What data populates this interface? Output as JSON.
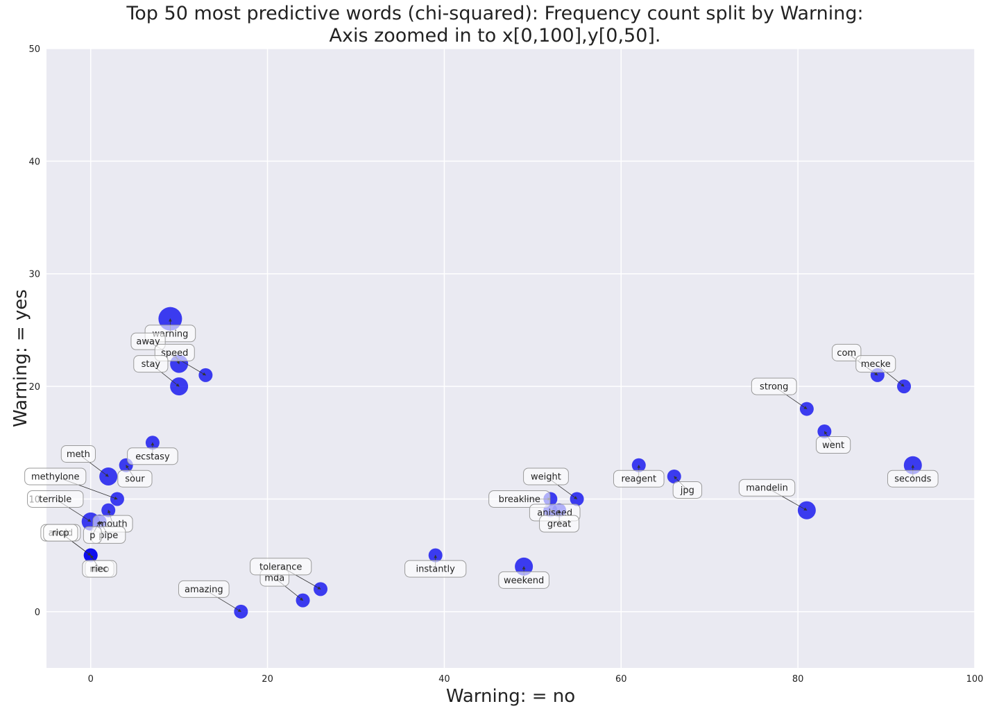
{
  "chart_data": {
    "type": "scatter",
    "title_line1": "Top 50 most predictive words (chi-squared): Frequency count split by Warning:",
    "title_line2": "Axis zoomed in to x[0,100],y[0,50].",
    "xlabel": "Warning: = no",
    "ylabel": "Warning: = yes",
    "xlim": [
      -5,
      100
    ],
    "ylim": [
      -5,
      50
    ],
    "xticks": [
      0,
      20,
      40,
      60,
      80,
      100
    ],
    "yticks": [
      0,
      10,
      20,
      30,
      40,
      50
    ],
    "grid": true,
    "point_color": "#0000ee",
    "background_color": "#eaeaf2",
    "points": [
      {
        "word": "warning",
        "x": 9,
        "y": 26,
        "size": 3
      },
      {
        "word": "away",
        "x": 13,
        "y": 21,
        "size": 1
      },
      {
        "word": "speed",
        "x": 10,
        "y": 22,
        "size": 2
      },
      {
        "word": "stay",
        "x": 10,
        "y": 20,
        "size": 2
      },
      {
        "word": "ecstasy",
        "x": 7,
        "y": 15,
        "size": 1
      },
      {
        "word": "meth",
        "x": 2,
        "y": 12,
        "size": 2
      },
      {
        "word": "sour",
        "x": 4,
        "y": 13,
        "size": 1
      },
      {
        "word": "methylone",
        "x": 3,
        "y": 10,
        "size": 1
      },
      {
        "word": "terrible",
        "x": 0,
        "y": 8,
        "size": 2
      },
      {
        "word": "mouth",
        "x": 2,
        "y": 9,
        "size": 1
      },
      {
        "word": "avoid",
        "x": 0,
        "y": 5,
        "size": 1
      },
      {
        "word": "pipe",
        "x": 1,
        "y": 8,
        "size": 1
      },
      {
        "word": "meo",
        "x": 0,
        "y": 5,
        "size": 1
      },
      {
        "word": "amazing",
        "x": 17,
        "y": 0,
        "size": 1
      },
      {
        "word": "mda",
        "x": 24,
        "y": 1,
        "size": 1
      },
      {
        "word": "tolerance",
        "x": 26,
        "y": 2,
        "size": 1
      },
      {
        "word": "instantly",
        "x": 39,
        "y": 5,
        "size": 1
      },
      {
        "word": "weekend",
        "x": 49,
        "y": 4,
        "size": 2
      },
      {
        "word": "weight",
        "x": 55,
        "y": 10,
        "size": 1
      },
      {
        "word": "breakline",
        "x": 52,
        "y": 10,
        "size": 1
      },
      {
        "word": "aniseed",
        "x": 52,
        "y": 9,
        "size": 1
      },
      {
        "word": "great",
        "x": 53,
        "y": 9,
        "size": 1
      },
      {
        "word": "reagent",
        "x": 62,
        "y": 13,
        "size": 1
      },
      {
        "word": "jpg",
        "x": 66,
        "y": 12,
        "size": 1
      },
      {
        "word": "strong",
        "x": 81,
        "y": 18,
        "size": 1
      },
      {
        "word": "went",
        "x": 83,
        "y": 16,
        "size": 1
      },
      {
        "word": "mandelin",
        "x": 81,
        "y": 9,
        "size": 2
      },
      {
        "word": "com",
        "x": 89,
        "y": 21,
        "size": 1
      },
      {
        "word": "mecke",
        "x": 92,
        "y": 20,
        "size": 1
      },
      {
        "word": "seconds",
        "x": 93,
        "y": 13,
        "size": 2
      }
    ],
    "labels": [
      {
        "text": "warning",
        "ref": "warning",
        "lx": 9,
        "ly": 24.7
      },
      {
        "text": "away",
        "ref": "away",
        "lx": 6.5,
        "ly": 24
      },
      {
        "text": "speed",
        "ref": "speed",
        "lx": 9.5,
        "ly": 23
      },
      {
        "text": "stay",
        "ref": "stay",
        "lx": 6.8,
        "ly": 22
      },
      {
        "text": "ecstasy",
        "ref": "ecstasy",
        "lx": 7,
        "ly": 13.8
      },
      {
        "text": "meth",
        "ref": "meth",
        "lx": -1.4,
        "ly": 14
      },
      {
        "text": "sour",
        "ref": "sour",
        "lx": 5,
        "ly": 11.8
      },
      {
        "text": "methylone",
        "ref": "methylone",
        "lx": -4,
        "ly": 12
      },
      {
        "text": "terrible",
        "ref": "terrible",
        "lx": -4,
        "ly": 10
      },
      {
        "text": "mouth",
        "ref": "mouth",
        "lx": 2.5,
        "ly": 7.8
      },
      {
        "text": "avoid",
        "ref": "avoid",
        "lx": -3.4,
        "ly": 7
      },
      {
        "text": "ricp",
        "ref": "avoid",
        "lx": -3.4,
        "ly": 7
      },
      {
        "text": "pipe",
        "ref": "pipe",
        "lx": 2,
        "ly": 6.8
      },
      {
        "text": "p",
        "ref": "pipe",
        "lx": 0.2,
        "ly": 6.8
      },
      {
        "text": "meo",
        "ref": "meo",
        "lx": 1,
        "ly": 3.8
      },
      {
        "text": "riec",
        "ref": "meo",
        "lx": 1,
        "ly": 3.8
      },
      {
        "text": "amazing",
        "ref": "amazing",
        "lx": 12.8,
        "ly": 2
      },
      {
        "text": "mda",
        "ref": "mda",
        "lx": 20.8,
        "ly": 3
      },
      {
        "text": "tolerance",
        "ref": "tolerance",
        "lx": 21.5,
        "ly": 4
      },
      {
        "text": "instantly",
        "ref": "instantly",
        "lx": 39,
        "ly": 3.8
      },
      {
        "text": "weekend",
        "ref": "weekend",
        "lx": 49,
        "ly": 2.8
      },
      {
        "text": "weight",
        "ref": "weight",
        "lx": 51.5,
        "ly": 12
      },
      {
        "text": "breakline",
        "ref": "breakline",
        "lx": 48.5,
        "ly": 10
      },
      {
        "text": "aniseed",
        "ref": "aniseed",
        "lx": 52.5,
        "ly": 8.8
      },
      {
        "text": "great",
        "ref": "great",
        "lx": 53,
        "ly": 7.8
      },
      {
        "text": "reagent",
        "ref": "reagent",
        "lx": 62,
        "ly": 11.8
      },
      {
        "text": "jpg",
        "ref": "jpg",
        "lx": 67.5,
        "ly": 10.8
      },
      {
        "text": "strong",
        "ref": "strong",
        "lx": 77.3,
        "ly": 20
      },
      {
        "text": "went",
        "ref": "went",
        "lx": 84,
        "ly": 14.8
      },
      {
        "text": "mandelin",
        "ref": "mandelin",
        "lx": 76.5,
        "ly": 11
      },
      {
        "text": "com",
        "ref": "com",
        "lx": 85.5,
        "ly": 23
      },
      {
        "text": "mecke",
        "ref": "mecke",
        "lx": 88.8,
        "ly": 22
      },
      {
        "text": "seconds",
        "ref": "seconds",
        "lx": 93,
        "ly": 11.8
      }
    ]
  }
}
